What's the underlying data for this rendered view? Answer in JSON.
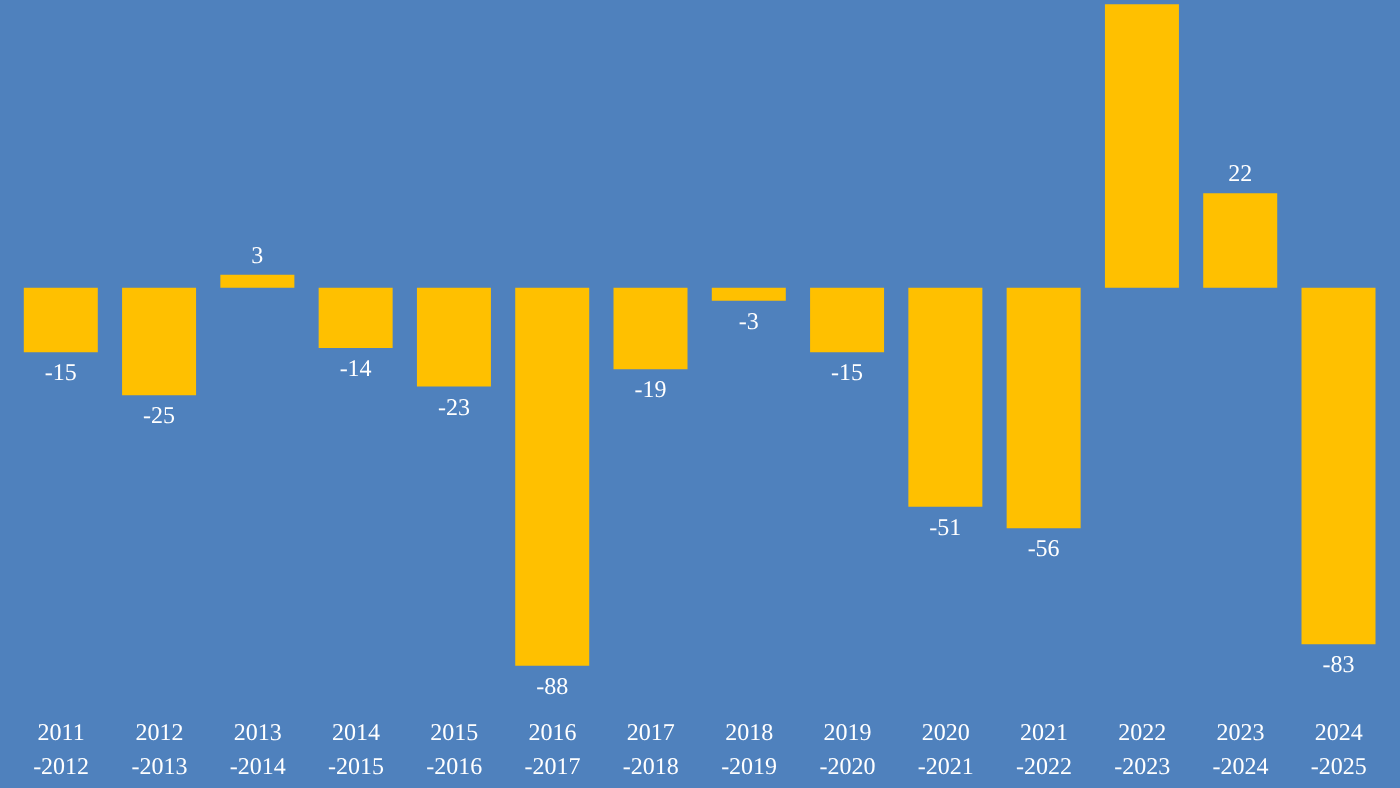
{
  "chart_data": {
    "type": "bar",
    "categories": [
      "2011\n-2012",
      "2012\n-2013",
      "2013\n-2014",
      "2014\n-2015",
      "2015\n-2016",
      "2016\n-2017",
      "2017\n-2018",
      "2018\n-2019",
      "2019\n-2020",
      "2020\n-2021",
      "2021\n-2022",
      "2022\n-2023",
      "2023\n-2024",
      "2024\n-2025"
    ],
    "values": [
      -15,
      -25,
      3,
      -14,
      -23,
      -88,
      -19,
      -3,
      -15,
      -51,
      -56,
      66,
      22,
      -83
    ],
    "value_labels": [
      "-15",
      "-25",
      "3",
      "-14",
      "-23",
      "-88",
      "-19",
      "-3",
      "-15",
      "-51",
      "-56",
      null,
      "22",
      "-83"
    ],
    "color": "#ffc000",
    "grid": false,
    "legend": false
  }
}
